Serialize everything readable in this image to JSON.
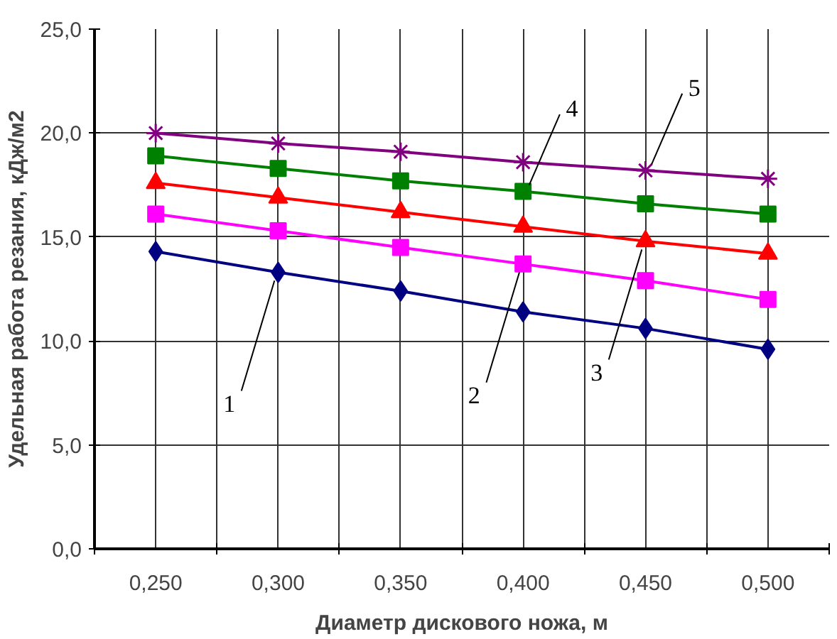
{
  "chart_data": {
    "type": "line",
    "xlabel": "Диаметр дискового ножа, м",
    "ylabel": "Удельная работа резания, кДж/м2",
    "categories": [
      "0,250",
      "0,300",
      "0,350",
      "0,400",
      "0,450",
      "0,500"
    ],
    "series": [
      {
        "color": "#000080",
        "marker": "diamond",
        "values": [
          14.3,
          13.3,
          12.4,
          11.4,
          10.6,
          9.6
        ]
      },
      {
        "color": "#ff00ff",
        "marker": "square",
        "values": [
          16.1,
          15.3,
          14.5,
          13.7,
          12.9,
          12.0
        ]
      },
      {
        "color": "#ff0000",
        "marker": "triangle",
        "values": [
          17.6,
          16.9,
          16.2,
          15.5,
          14.8,
          14.2
        ]
      },
      {
        "color": "#008000",
        "marker": "square",
        "values": [
          18.9,
          18.3,
          17.7,
          17.2,
          16.6,
          16.1
        ]
      },
      {
        "color": "#800080",
        "marker": "cross",
        "values": [
          20.0,
          19.5,
          19.1,
          18.6,
          18.2,
          17.8
        ]
      }
    ],
    "ylim": [
      0,
      25
    ],
    "yticks": [
      {
        "value": 0,
        "label": "0,0"
      },
      {
        "value": 5,
        "label": "5,0"
      },
      {
        "value": 10,
        "label": "10,0"
      },
      {
        "value": 15,
        "label": "15,0"
      },
      {
        "value": 20,
        "label": "20,0"
      },
      {
        "value": 25,
        "label": "25,0"
      }
    ],
    "grid": true,
    "annotations": [
      {
        "text": "1",
        "x": "0,300",
        "y": 13.3
      },
      {
        "text": "2",
        "x": "0,400",
        "y": 13.7
      },
      {
        "text": "3",
        "x": "0,450",
        "y": 14.8
      },
      {
        "text": "4",
        "x": "0,400",
        "y": 17.2
      },
      {
        "text": "5",
        "x": "0,450",
        "y": 18.2
      }
    ]
  }
}
